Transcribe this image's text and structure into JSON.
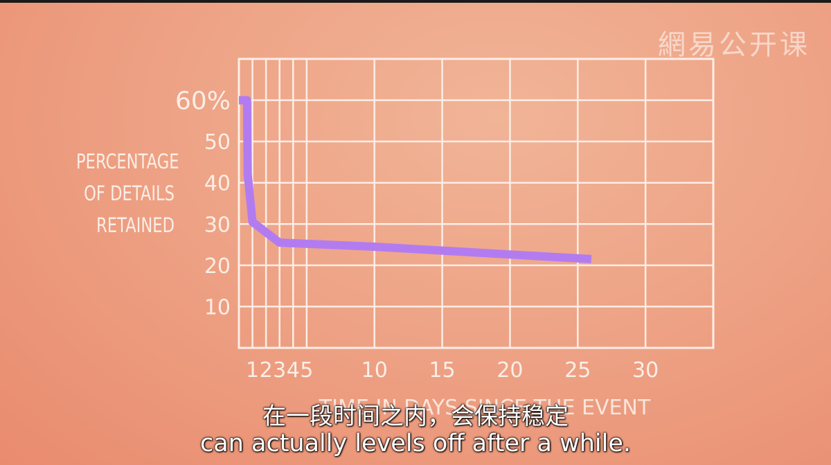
{
  "watermark": "網易公开课",
  "chart_data": {
    "type": "line",
    "ylabel": "PERCENTAGE OF DETAILS RETAINED",
    "xlabel": "TIME IN DAYS SINCE THE EVENT",
    "x_ticks": [
      1,
      2,
      3,
      4,
      5,
      10,
      15,
      20,
      25,
      30
    ],
    "y_ticks": [
      {
        "value": 10,
        "label": "10"
      },
      {
        "value": 20,
        "label": "20"
      },
      {
        "value": 30,
        "label": "30"
      },
      {
        "value": 40,
        "label": "40"
      },
      {
        "value": 50,
        "label": "50"
      },
      {
        "value": 60,
        "label": "60%"
      }
    ],
    "xlim": [
      0,
      35
    ],
    "ylim": [
      0,
      70
    ],
    "grid": true,
    "series": [
      {
        "color": "#b27cf0",
        "x": [
          0,
          0.6,
          0.65,
          1,
          3,
          10,
          26
        ],
        "y": [
          60,
          60,
          42,
          30.5,
          25.5,
          24.5,
          21.5
        ]
      }
    ]
  },
  "subtitles": {
    "zh": "在一段时间之内，会保持稳定",
    "en": "can actually levels off after a while."
  }
}
